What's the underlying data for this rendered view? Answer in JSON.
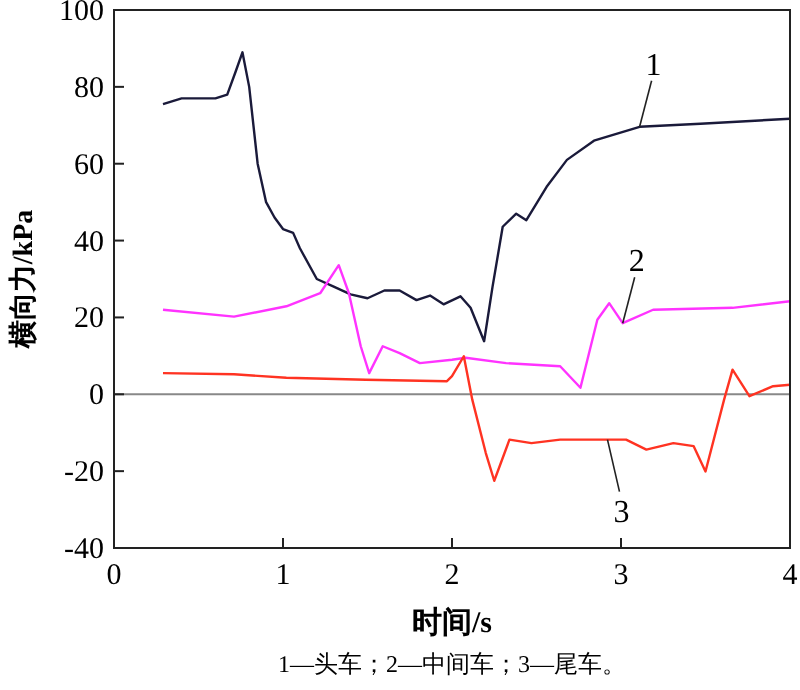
{
  "chart_data": {
    "type": "line",
    "xlabel": "时间/s",
    "ylabel": "横向力/kPa",
    "xlim": [
      0,
      4
    ],
    "ylim": [
      -40,
      100
    ],
    "xticks": [
      0,
      1,
      2,
      3,
      4
    ],
    "yticks": [
      -40,
      -20,
      0,
      20,
      40,
      60,
      80,
      100
    ],
    "grid": false,
    "marker": "none",
    "line_style": "solid",
    "series": [
      {
        "color": "#1a1a3a",
        "x": [
          0.29,
          0.4,
          0.6,
          0.67,
          0.72,
          0.76,
          0.8,
          0.85,
          0.9,
          0.95,
          1.0,
          1.06,
          1.1,
          1.2,
          1.3,
          1.4,
          1.5,
          1.6,
          1.69,
          1.79,
          1.87,
          1.95,
          2.05,
          2.11,
          2.19,
          2.24,
          2.3,
          2.38,
          2.44,
          2.56,
          2.68,
          2.84,
          3.11,
          3.47,
          4.0
        ],
        "values": [
          75.5,
          77,
          77,
          78,
          84,
          89,
          80,
          60,
          50,
          46,
          43,
          42,
          38,
          30,
          28,
          26,
          25,
          27,
          27,
          24.5,
          25.7,
          23.4,
          25.5,
          22.5,
          13.8,
          28,
          43.6,
          47,
          45.3,
          54,
          61,
          66,
          69.6,
          70.4,
          71.7
        ]
      },
      {
        "color": "#ff33ff",
        "x": [
          0.29,
          0.71,
          1.02,
          1.22,
          1.33,
          1.39,
          1.46,
          1.51,
          1.59,
          1.69,
          1.81,
          2.0,
          2.08,
          2.32,
          2.64,
          2.76,
          2.86,
          2.93,
          3.01,
          3.19,
          3.66,
          4.0
        ],
        "values": [
          22,
          20.2,
          22.9,
          26.3,
          33.6,
          26.3,
          12.5,
          5.5,
          12.5,
          10.7,
          8.1,
          9,
          9.5,
          8.1,
          7.3,
          1.7,
          19.4,
          23.7,
          18.5,
          22,
          22.5,
          24.2
        ]
      },
      {
        "color": "#ff3322",
        "x": [
          0.29,
          0.71,
          1.02,
          1.49,
          1.97,
          2.0,
          2.07,
          2.12,
          2.2,
          2.25,
          2.34,
          2.47,
          2.64,
          2.84,
          3.03,
          3.15,
          3.31,
          3.43,
          3.5,
          3.61,
          3.66,
          3.76,
          3.9,
          4.0
        ],
        "values": [
          5.5,
          5.2,
          4.3,
          3.8,
          3.4,
          4.7,
          9.9,
          -1.4,
          -15.3,
          -22.5,
          -11.8,
          -12.7,
          -11.8,
          -11.8,
          -11.8,
          -14.4,
          -12.7,
          -13.5,
          -20.1,
          -1.4,
          6.4,
          -0.5,
          2.1,
          2.5
        ]
      }
    ],
    "ref_lines": [
      {
        "axis": "y",
        "value": 0,
        "color": "#888888"
      }
    ],
    "annotations": [
      {
        "text": "1",
        "x": 3.11,
        "y": 69.6
      },
      {
        "text": "2",
        "x": 3.01,
        "y": 18.5
      },
      {
        "text": "3",
        "x": 2.92,
        "y": -11.8
      },
      "1—头车；2—中间车；3—尾车。"
    ]
  }
}
